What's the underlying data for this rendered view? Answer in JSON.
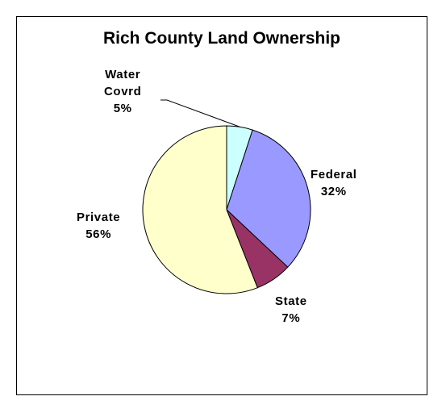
{
  "chart_data": {
    "type": "pie",
    "title": "Rich County Land Ownership",
    "slices": [
      {
        "name": "Water Covrd",
        "label_lines": [
          "Water",
          "Covrd",
          "5%"
        ],
        "value": 5,
        "color": "#ccffff"
      },
      {
        "name": "Federal",
        "label_lines": [
          "Federal",
          "32%"
        ],
        "value": 32,
        "color": "#9999ff"
      },
      {
        "name": "State",
        "label_lines": [
          "State",
          "7%"
        ],
        "value": 7,
        "color": "#993366"
      },
      {
        "name": "Private",
        "label_lines": [
          "Private",
          "56%"
        ],
        "value": 56,
        "color": "#ffffcc"
      }
    ],
    "legend": "none",
    "data_labels": "outside"
  }
}
